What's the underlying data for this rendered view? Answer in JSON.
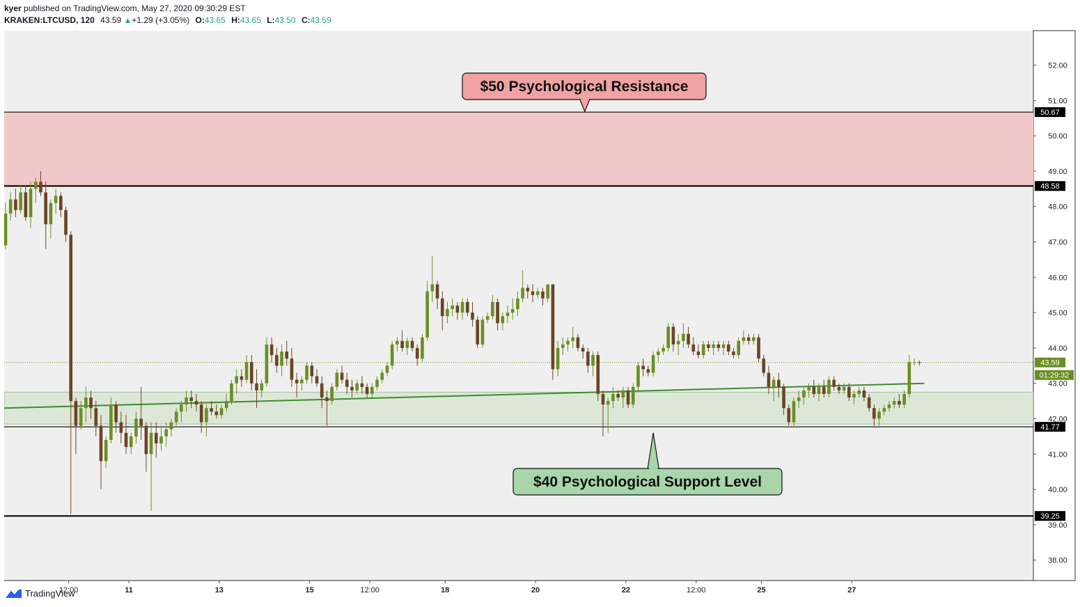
{
  "header": {
    "author": "kyer",
    "published_text": "published on TradingView.com, May 27, 2020 09:30:29 EST",
    "symbol": "KRAKEN:LTCUSD, 120",
    "last": "43.59",
    "up_arrow": "▲",
    "change": "+1.29 (+3.05%)",
    "o_label": "O:",
    "o_value": "43.65",
    "h_label": "H:",
    "h_value": "43.65",
    "l_label": "L:",
    "l_value": "43.50",
    "c_label": "C:",
    "c_value": "43.59"
  },
  "footer": {
    "brand": "TradingView"
  },
  "colors": {
    "up": "#6b8e23",
    "down": "#6b4423",
    "plot_bg": "#efefef",
    "resistance_zone": "#f1c8c9",
    "support_zone": "#dde7d8",
    "trendline": "#3e8a2e",
    "callout_red": "#f0a3a2",
    "callout_green": "#a8d5aa"
  },
  "chart_data": {
    "type": "candlestick",
    "symbol": "KRAKEN:LTCUSD",
    "interval": "120",
    "ylim": [
      37.5,
      53
    ],
    "y_ticks": [
      38,
      39,
      40,
      41,
      42,
      43,
      44,
      45,
      46,
      47,
      48,
      49,
      50,
      51,
      52
    ],
    "x_ticks": [
      {
        "i": 12,
        "label": "12:00",
        "bold": false
      },
      {
        "i": 24,
        "label": "11",
        "bold": true
      },
      {
        "i": 42,
        "label": "13",
        "bold": true
      },
      {
        "i": 60,
        "label": "15",
        "bold": true
      },
      {
        "i": 72,
        "label": "12:00",
        "bold": false
      },
      {
        "i": 87,
        "label": "18",
        "bold": true
      },
      {
        "i": 105,
        "label": "20",
        "bold": true
      },
      {
        "i": 123,
        "label": "22",
        "bold": true
      },
      {
        "i": 137,
        "label": "12:00",
        "bold": false
      },
      {
        "i": 150,
        "label": "25",
        "bold": true
      },
      {
        "i": 168,
        "label": "27",
        "bold": true
      }
    ],
    "price_levels": [
      {
        "value": 50.67,
        "label": "50.67"
      },
      {
        "value": 48.58,
        "label": "48.58"
      },
      {
        "value": 41.77,
        "label": "41.77"
      },
      {
        "value": 39.25,
        "label": "39.25"
      }
    ],
    "last_price": {
      "value": 43.59,
      "label": "43.59",
      "countdown": "01:29:32"
    },
    "resistance_zone": [
      48.6,
      50.67
    ],
    "support_zone": [
      41.85,
      42.75
    ],
    "trendline": {
      "start": [
        0,
        42.3
      ],
      "end": [
        183,
        43.0
      ]
    },
    "annotations": [
      {
        "text": "$50 Psychological Resistance",
        "theme": "red",
        "points_to": [
          104,
          50.67
        ]
      },
      {
        "text": "$40 Psychological Support Level",
        "theme": "green",
        "points_to": [
          115,
          41.6
        ]
      }
    ],
    "candles": [
      [
        46.9,
        48.1,
        46.8,
        47.8
      ],
      [
        47.8,
        48.4,
        47.6,
        48.2
      ],
      [
        48.2,
        48.5,
        47.7,
        47.9
      ],
      [
        47.9,
        48.6,
        47.8,
        48.4
      ],
      [
        48.4,
        48.6,
        47.6,
        47.7
      ],
      [
        47.7,
        48.7,
        47.4,
        48.5
      ],
      [
        48.5,
        48.8,
        48.1,
        48.7
      ],
      [
        48.7,
        49.0,
        48.3,
        48.4
      ],
      [
        48.4,
        48.7,
        46.8,
        47.5
      ],
      [
        47.5,
        48.2,
        47.1,
        48.1
      ],
      [
        48.1,
        48.5,
        47.8,
        48.3
      ],
      [
        48.3,
        48.4,
        47.7,
        47.9
      ],
      [
        47.9,
        48.0,
        47.0,
        47.2
      ],
      [
        47.2,
        47.3,
        39.3,
        42.5
      ],
      [
        42.5,
        42.6,
        41.0,
        41.8
      ],
      [
        41.8,
        42.5,
        41.7,
        42.3
      ],
      [
        42.3,
        42.9,
        41.9,
        42.6
      ],
      [
        42.6,
        42.8,
        42.0,
        42.3
      ],
      [
        42.3,
        42.5,
        41.5,
        41.8
      ],
      [
        41.8,
        42.1,
        40.0,
        40.8
      ],
      [
        40.8,
        41.5,
        40.6,
        41.4
      ],
      [
        41.4,
        42.6,
        41.3,
        42.4
      ],
      [
        42.4,
        42.5,
        41.6,
        41.9
      ],
      [
        41.9,
        42.2,
        41.3,
        41.6
      ],
      [
        41.6,
        42.1,
        41.0,
        41.2
      ],
      [
        41.2,
        41.6,
        41.0,
        41.5
      ],
      [
        41.5,
        42.2,
        41.3,
        42.0
      ],
      [
        42.0,
        42.9,
        41.4,
        41.8
      ],
      [
        41.8,
        41.9,
        40.5,
        41.0
      ],
      [
        41.0,
        41.9,
        39.4,
        41.6
      ],
      [
        41.6,
        41.9,
        40.9,
        41.3
      ],
      [
        41.3,
        41.8,
        41.1,
        41.5
      ],
      [
        41.5,
        41.9,
        41.2,
        41.7
      ],
      [
        41.7,
        42.0,
        41.5,
        41.9
      ],
      [
        41.9,
        42.3,
        41.8,
        42.2
      ],
      [
        42.2,
        42.5,
        41.9,
        42.4
      ],
      [
        42.4,
        42.8,
        42.2,
        42.6
      ],
      [
        42.6,
        42.8,
        42.3,
        42.5
      ],
      [
        42.5,
        42.7,
        42.2,
        42.4
      ],
      [
        42.4,
        42.5,
        41.6,
        41.9
      ],
      [
        41.9,
        42.4,
        41.5,
        42.3
      ],
      [
        42.3,
        42.5,
        42.1,
        42.2
      ],
      [
        42.2,
        42.4,
        42.0,
        42.1
      ],
      [
        42.1,
        42.4,
        42.0,
        42.3
      ],
      [
        42.3,
        42.7,
        42.2,
        42.5
      ],
      [
        42.5,
        43.1,
        42.4,
        43.0
      ],
      [
        43.0,
        43.4,
        42.7,
        43.2
      ],
      [
        43.2,
        43.4,
        42.9,
        43.1
      ],
      [
        43.1,
        43.8,
        43.0,
        43.6
      ],
      [
        43.6,
        43.8,
        42.8,
        43.0
      ],
      [
        43.0,
        43.4,
        42.3,
        42.8
      ],
      [
        42.8,
        43.1,
        42.6,
        43.0
      ],
      [
        43.0,
        44.3,
        42.9,
        44.1
      ],
      [
        44.1,
        44.3,
        43.6,
        43.8
      ],
      [
        43.8,
        44.0,
        43.3,
        43.5
      ],
      [
        43.5,
        44.1,
        43.2,
        43.9
      ],
      [
        43.9,
        44.2,
        43.5,
        43.7
      ],
      [
        43.7,
        44.0,
        42.9,
        43.1
      ],
      [
        43.1,
        43.3,
        42.6,
        43.0
      ],
      [
        43.0,
        43.2,
        42.8,
        43.1
      ],
      [
        43.1,
        43.6,
        43.0,
        43.5
      ],
      [
        43.5,
        43.6,
        43.0,
        43.2
      ],
      [
        43.2,
        43.4,
        42.9,
        43.0
      ],
      [
        43.0,
        43.2,
        42.3,
        42.6
      ],
      [
        42.6,
        42.8,
        41.8,
        42.5
      ],
      [
        42.5,
        43.0,
        42.4,
        42.9
      ],
      [
        42.9,
        43.4,
        42.8,
        43.3
      ],
      [
        43.3,
        43.5,
        43.0,
        43.1
      ],
      [
        43.1,
        43.3,
        42.7,
        42.9
      ],
      [
        42.9,
        43.1,
        42.6,
        42.8
      ],
      [
        42.8,
        43.1,
        42.7,
        43.0
      ],
      [
        43.0,
        43.2,
        42.7,
        42.9
      ],
      [
        42.9,
        43.0,
        42.6,
        42.7
      ],
      [
        42.7,
        43.0,
        42.6,
        42.9
      ],
      [
        42.9,
        43.2,
        42.8,
        43.1
      ],
      [
        43.1,
        43.4,
        43.0,
        43.3
      ],
      [
        43.3,
        43.6,
        43.2,
        43.5
      ],
      [
        43.5,
        44.2,
        43.4,
        44.1
      ],
      [
        44.1,
        44.3,
        43.9,
        44.2
      ],
      [
        44.2,
        44.5,
        43.9,
        44.0
      ],
      [
        44.0,
        44.3,
        43.8,
        44.2
      ],
      [
        44.2,
        44.3,
        43.9,
        44.0
      ],
      [
        44.0,
        44.1,
        43.5,
        43.7
      ],
      [
        43.7,
        44.4,
        43.6,
        44.3
      ],
      [
        44.3,
        45.9,
        44.2,
        45.6
      ],
      [
        45.6,
        46.6,
        45.3,
        45.8
      ],
      [
        45.8,
        45.9,
        45.1,
        45.4
      ],
      [
        45.4,
        45.6,
        44.5,
        44.9
      ],
      [
        44.9,
        45.3,
        44.7,
        45.1
      ],
      [
        45.1,
        45.4,
        44.9,
        45.2
      ],
      [
        45.2,
        45.3,
        44.8,
        45.0
      ],
      [
        45.0,
        45.4,
        44.8,
        45.3
      ],
      [
        45.3,
        45.4,
        44.9,
        45.0
      ],
      [
        45.0,
        45.3,
        44.6,
        44.8
      ],
      [
        44.8,
        44.9,
        44.0,
        44.1
      ],
      [
        44.1,
        44.9,
        44.0,
        44.8
      ],
      [
        44.8,
        45.0,
        44.7,
        44.9
      ],
      [
        44.9,
        45.5,
        44.8,
        45.3
      ],
      [
        45.3,
        45.4,
        44.5,
        44.7
      ],
      [
        44.7,
        45.0,
        44.5,
        44.9
      ],
      [
        44.9,
        45.2,
        44.7,
        45.0
      ],
      [
        45.0,
        45.4,
        44.8,
        45.1
      ],
      [
        45.1,
        45.6,
        44.9,
        45.4
      ],
      [
        45.4,
        46.2,
        45.3,
        45.7
      ],
      [
        45.7,
        45.8,
        45.4,
        45.6
      ],
      [
        45.6,
        45.8,
        45.3,
        45.5
      ],
      [
        45.5,
        45.7,
        45.4,
        45.6
      ],
      [
        45.6,
        45.7,
        45.2,
        45.4
      ],
      [
        45.4,
        45.8,
        45.3,
        45.8
      ],
      [
        45.8,
        45.8,
        43.1,
        43.4
      ],
      [
        43.4,
        44.2,
        43.2,
        44.0
      ],
      [
        44.0,
        44.3,
        43.8,
        44.1
      ],
      [
        44.1,
        44.3,
        43.9,
        44.2
      ],
      [
        44.2,
        44.6,
        44.0,
        44.3
      ],
      [
        44.3,
        44.4,
        43.9,
        44.0
      ],
      [
        44.0,
        44.1,
        43.7,
        43.9
      ],
      [
        43.9,
        44.0,
        43.3,
        43.5
      ],
      [
        43.5,
        43.9,
        43.2,
        43.8
      ],
      [
        43.8,
        43.9,
        42.5,
        42.7
      ],
      [
        42.7,
        42.8,
        41.5,
        42.4
      ],
      [
        42.4,
        42.6,
        41.6,
        42.5
      ],
      [
        42.5,
        42.9,
        42.3,
        42.7
      ],
      [
        42.7,
        42.8,
        42.5,
        42.6
      ],
      [
        42.6,
        42.9,
        42.3,
        42.8
      ],
      [
        42.8,
        42.9,
        42.3,
        42.4
      ],
      [
        42.4,
        43.0,
        42.3,
        42.9
      ],
      [
        42.9,
        43.6,
        42.8,
        43.5
      ],
      [
        43.5,
        43.7,
        43.2,
        43.4
      ],
      [
        43.4,
        43.5,
        43.2,
        43.3
      ],
      [
        43.3,
        43.9,
        43.2,
        43.8
      ],
      [
        43.8,
        44.0,
        43.6,
        43.9
      ],
      [
        43.9,
        44.1,
        43.8,
        44.0
      ],
      [
        44.0,
        44.7,
        43.9,
        44.6
      ],
      [
        44.6,
        44.7,
        43.9,
        44.1
      ],
      [
        44.1,
        44.4,
        43.8,
        44.2
      ],
      [
        44.2,
        44.7,
        44.0,
        44.4
      ],
      [
        44.4,
        44.6,
        44.0,
        44.1
      ],
      [
        44.1,
        44.3,
        43.8,
        43.9
      ],
      [
        43.9,
        44.1,
        43.7,
        43.8
      ],
      [
        43.8,
        44.2,
        43.7,
        44.1
      ],
      [
        44.1,
        44.2,
        43.9,
        44.0
      ],
      [
        44.0,
        44.2,
        43.8,
        44.1
      ],
      [
        44.1,
        44.2,
        43.9,
        44.0
      ],
      [
        44.0,
        44.2,
        43.8,
        44.1
      ],
      [
        44.1,
        44.2,
        43.8,
        43.9
      ],
      [
        43.9,
        44.0,
        43.7,
        43.8
      ],
      [
        43.8,
        44.3,
        43.7,
        44.2
      ],
      [
        44.2,
        44.5,
        44.1,
        44.3
      ],
      [
        44.3,
        44.4,
        44.1,
        44.2
      ],
      [
        44.2,
        44.4,
        44.1,
        44.3
      ],
      [
        44.3,
        44.4,
        43.6,
        43.7
      ],
      [
        43.7,
        43.8,
        43.2,
        43.3
      ],
      [
        43.3,
        43.5,
        42.7,
        42.9
      ],
      [
        42.9,
        43.2,
        42.5,
        43.1
      ],
      [
        43.1,
        43.3,
        42.6,
        42.9
      ],
      [
        42.9,
        43.0,
        42.1,
        42.3
      ],
      [
        42.3,
        42.4,
        41.8,
        41.9
      ],
      [
        41.9,
        42.6,
        41.8,
        42.5
      ],
      [
        42.5,
        42.8,
        42.3,
        42.6
      ],
      [
        42.6,
        42.9,
        42.4,
        42.8
      ],
      [
        42.8,
        43.0,
        42.6,
        42.9
      ],
      [
        42.9,
        43.1,
        42.6,
        42.7
      ],
      [
        42.7,
        43.0,
        42.5,
        42.9
      ],
      [
        42.9,
        43.1,
        42.6,
        42.7
      ],
      [
        42.7,
        43.2,
        42.6,
        43.1
      ],
      [
        43.1,
        43.2,
        42.8,
        42.9
      ],
      [
        42.9,
        43.0,
        42.7,
        42.8
      ],
      [
        42.8,
        43.0,
        42.7,
        42.9
      ],
      [
        42.9,
        43.0,
        42.5,
        42.6
      ],
      [
        42.6,
        42.8,
        42.4,
        42.7
      ],
      [
        42.7,
        42.9,
        42.6,
        42.8
      ],
      [
        42.8,
        42.9,
        42.5,
        42.6
      ],
      [
        42.6,
        42.7,
        42.2,
        42.3
      ],
      [
        42.3,
        42.4,
        41.8,
        42.0
      ],
      [
        42.0,
        42.3,
        41.8,
        42.2
      ],
      [
        42.2,
        42.4,
        42.1,
        42.3
      ],
      [
        42.3,
        42.5,
        42.2,
        42.4
      ],
      [
        42.4,
        42.6,
        42.3,
        42.5
      ],
      [
        42.5,
        42.7,
        42.3,
        42.4
      ],
      [
        42.4,
        42.8,
        42.3,
        42.7
      ],
      [
        42.7,
        43.8,
        42.6,
        43.6
      ],
      [
        43.6,
        43.7,
        43.5,
        43.6
      ],
      [
        43.6,
        43.65,
        43.5,
        43.59
      ]
    ]
  }
}
